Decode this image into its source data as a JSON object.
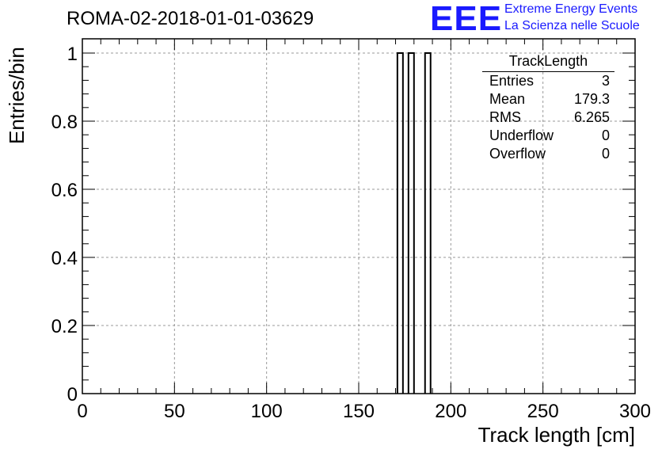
{
  "title": "ROMA-02-2018-01-01-03629",
  "logo": {
    "mark": "EEE",
    "line1": "Extreme Energy Events",
    "line2": "La Scienza nelle Scuole",
    "color": "#1a1aff"
  },
  "stats": {
    "name": "TrackLength",
    "rows": [
      {
        "label": "Entries",
        "value": "3"
      },
      {
        "label": "Mean",
        "value": "179.3"
      },
      {
        "label": "RMS",
        "value": "6.265"
      },
      {
        "label": "Underflow",
        "value": "0"
      },
      {
        "label": "Overflow",
        "value": "0"
      }
    ]
  },
  "chart_data": {
    "type": "bar",
    "title": "ROMA-02-2018-01-01-03629",
    "xlabel": "Track length [cm]",
    "ylabel": "Entries/bin",
    "xlim": [
      0,
      300
    ],
    "ylim": [
      0,
      1
    ],
    "grid": true,
    "legend_position": "top-right",
    "bins": [
      {
        "x0": 171,
        "x1": 174,
        "value": 1
      },
      {
        "x0": 177,
        "x1": 180,
        "value": 1
      },
      {
        "x0": 186,
        "x1": 189,
        "value": 1
      }
    ],
    "xticks": [
      0,
      50,
      100,
      150,
      200,
      250,
      300
    ],
    "yticks": [
      0,
      0.2,
      0.4,
      0.6,
      0.8,
      1
    ]
  }
}
